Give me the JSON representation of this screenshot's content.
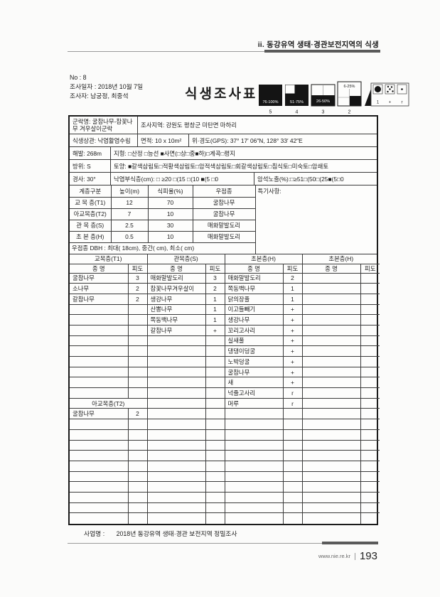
{
  "page": {
    "header": "ii. 동강유역 생태·경관보전지역의 식생",
    "project_label": "사업명 :",
    "project_name": "2018년 동강유역 생태·경관 보전지역 정밀조사",
    "footer_site": "www.nie.re.kr",
    "footer_page": "193"
  },
  "info": {
    "no": "No : 8",
    "date": "조사일자 : 2018년 10월 7일",
    "surveyors": "조사자: 남궁정, 최중석",
    "title": "식생조사표"
  },
  "legend": {
    "squares": [
      {
        "pct": "76-100%",
        "num": "5"
      },
      {
        "pct": "51-75%",
        "num": "4"
      },
      {
        "pct": "26-50%",
        "num": "3"
      },
      {
        "pct": "6-25%",
        "num": "2"
      }
    ],
    "dots": [
      {
        "label": "1"
      },
      {
        "label": "+"
      },
      {
        "label": "r"
      }
    ]
  },
  "form": {
    "community": "군락명: 굴참나무-참꽃나무 겨우살이군락",
    "region": "조사지역: 강원도 평창군 미탄면 마하리",
    "physiognomy": "식생상관: 낙엽활엽수림",
    "area": "면적: 10 x 10m²",
    "gps": "위·경도(GPS):  37° 17′ 06″N,  128° 33′ 42″E",
    "elevation": "해발: 268m",
    "topography": "지형: □산정 □능선 ■사면(□상□중■하)□계곡□평지",
    "aspect": "방위: S",
    "soil": "토양: ■갈색삼림토□적황색삼림토□암적색삼림토□회갈색삼림토□침식토□미숙토□암쇄토",
    "slope": "경사: 30°",
    "litter": "낙엽부식층(cm): □ ≥20 □(15 □(10 ■(5 □0",
    "rock": "암석노출(%):□≥51□(50□(25■(5□0"
  },
  "layers": {
    "headers": [
      "계층구분",
      "높이(m)",
      "식피율(%)",
      "우점종"
    ],
    "special_note": "특기사항:",
    "rows": [
      {
        "layer": "교 목 층(T1)",
        "height": "12",
        "cover": "70",
        "dominant": "굴참나무"
      },
      {
        "layer": "아교목층(T2)",
        "height": "7",
        "cover": "10",
        "dominant": "굴참나무"
      },
      {
        "layer": "관 목 층(S)",
        "height": "2.5",
        "cover": "30",
        "dominant": "매화말발도리"
      },
      {
        "layer": "초 본 층(H)",
        "height": "0.5",
        "cover": "10",
        "dominant": "매화말발도리"
      }
    ],
    "dbh": "우점종 DBH : 최대( 18cm), 중간( cm), 최소( cm)"
  },
  "species_table": {
    "group_headers": [
      "교목층(T1)",
      "관목층(S)",
      "초본층(H)",
      "초본층(H)"
    ],
    "col_name": "종 명",
    "col_cover": "피도",
    "t2_row_index": 12,
    "rows": [
      [
        "굴참나무",
        "3",
        "매화말발도리",
        "3",
        "매화말발도리",
        "2",
        "",
        ""
      ],
      [
        "소나무",
        "2",
        "참꽃나무겨우살이",
        "2",
        "쪽동백나무",
        "1",
        "",
        ""
      ],
      [
        "갈참나무",
        "2",
        "생강나무",
        "1",
        "닭의장풀",
        "1",
        "",
        ""
      ],
      [
        "",
        "",
        "산뽕나무",
        "1",
        "이고들빼기",
        "+",
        "",
        ""
      ],
      [
        "",
        "",
        "쪽동백나무",
        "1",
        "생강나무",
        "+",
        "",
        ""
      ],
      [
        "",
        "",
        "갈참나무",
        "+",
        "꼬리고사리",
        "+",
        "",
        ""
      ],
      [
        "",
        "",
        "",
        "",
        "실새풀",
        "+",
        "",
        ""
      ],
      [
        "",
        "",
        "",
        "",
        "댕댕이덩굴",
        "+",
        "",
        ""
      ],
      [
        "",
        "",
        "",
        "",
        "노박덩굴",
        "+",
        "",
        ""
      ],
      [
        "",
        "",
        "",
        "",
        "굴참나무",
        "+",
        "",
        ""
      ],
      [
        "",
        "",
        "",
        "",
        "새",
        "+",
        "",
        ""
      ],
      [
        "",
        "",
        "",
        "",
        "넉줄고사리",
        "r",
        "",
        ""
      ],
      [
        "아교목층(T2)",
        "",
        "",
        "",
        "머루",
        "r",
        "",
        ""
      ],
      [
        "굴참나무",
        "2",
        "",
        "",
        "",
        "",
        "",
        ""
      ],
      [
        "",
        "",
        "",
        "",
        "",
        "",
        "",
        ""
      ],
      [
        "",
        "",
        "",
        "",
        "",
        "",
        "",
        ""
      ],
      [
        "",
        "",
        "",
        "",
        "",
        "",
        "",
        ""
      ],
      [
        "",
        "",
        "",
        "",
        "",
        "",
        "",
        ""
      ],
      [
        "",
        "",
        "",
        "",
        "",
        "",
        "",
        ""
      ],
      [
        "",
        "",
        "",
        "",
        "",
        "",
        "",
        ""
      ],
      [
        "",
        "",
        "",
        "",
        "",
        "",
        "",
        ""
      ],
      [
        "",
        "",
        "",
        "",
        "",
        "",
        "",
        ""
      ],
      [
        "",
        "",
        "",
        "",
        "",
        "",
        "",
        ""
      ],
      [
        "",
        "",
        "",
        "",
        "",
        "",
        "",
        ""
      ]
    ]
  }
}
